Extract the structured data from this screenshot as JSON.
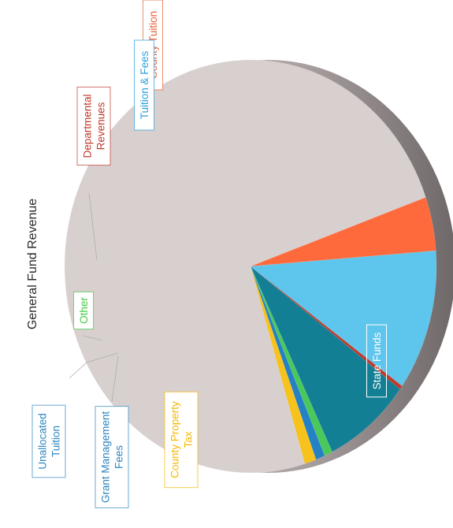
{
  "chart_data": {
    "type": "pie",
    "title": "General Fund Revenue",
    "slices": [
      {
        "label": "State Funds",
        "value": 74.0,
        "color": "#d8cfcf",
        "label_color": "#9a9a9a"
      },
      {
        "label": "County Tuition",
        "value": 4.2,
        "color": "#ff6a3d",
        "label_color": "#e8623a"
      },
      {
        "label": "Tuition & Fees",
        "value": 11.0,
        "color": "#5ec5ec",
        "label_color": "#2aa0dc"
      },
      {
        "label": "Departmental Revenues",
        "value": 0.3,
        "color": "#c0392b",
        "label_color": "#c0392b"
      },
      {
        "label": "Unallocated Tuition",
        "value": 7.6,
        "color": "#137f95",
        "label_color": "#2e86c1"
      },
      {
        "label": "Other",
        "value": 0.7,
        "color": "#49c95a",
        "label_color": "#44cc44"
      },
      {
        "label": "Grant Management Fees",
        "value": 0.8,
        "color": "#2481c4",
        "label_color": "#2e86c1"
      },
      {
        "label": "County Property Tax",
        "value": 1.0,
        "color": "#f7c21b",
        "label_color": "#f5b800"
      }
    ],
    "label_lines": {
      "State Funds": [
        "State Funds"
      ],
      "County Tuition": [
        "County Tuition"
      ],
      "Tuition & Fees": [
        "Tuition & Fees"
      ],
      "Departmental Revenues": [
        "Departmental",
        "Revenues"
      ],
      "Unallocated Tuition": [
        "Unallocated",
        "Tuition"
      ],
      "Other": [
        "Other"
      ],
      "Grant Management Fees": [
        "Grant Management",
        "Fees"
      ],
      "County Property Tax": [
        "County Property",
        "Tax"
      ]
    },
    "legend": "none",
    "orientation": "rotated 90 degrees counter-clockwise"
  }
}
